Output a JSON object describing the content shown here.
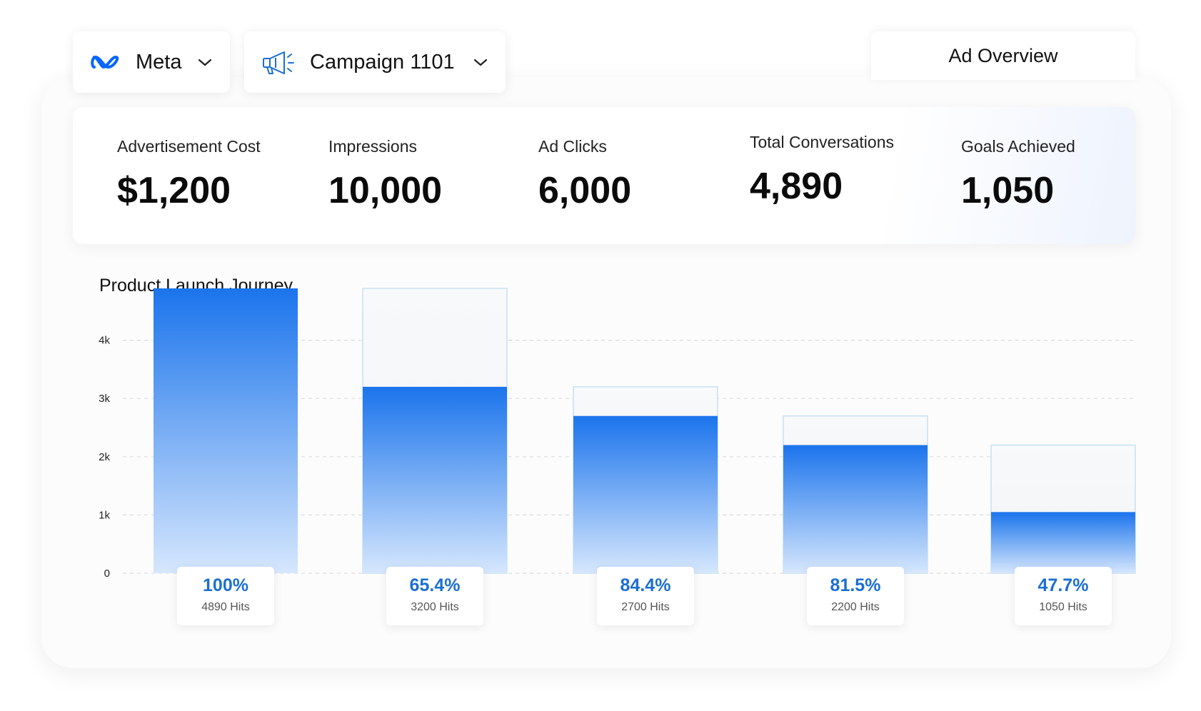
{
  "colors": {
    "accent": "#1b74ec",
    "accent_light": "#d6e7fd",
    "meta_blue": "#0866ff"
  },
  "header": {
    "platform_dropdown": {
      "label": "Meta",
      "icon": "meta-logo-icon"
    },
    "campaign_dropdown": {
      "label": "Campaign 1101",
      "icon": "megaphone-icon"
    },
    "tab_label": "Ad Overview"
  },
  "stats": [
    {
      "label": "Advertisement Cost",
      "value": "$1,200"
    },
    {
      "label": "Impressions",
      "value": "10,000"
    },
    {
      "label": "Ad Clicks",
      "value": "6,000"
    },
    {
      "label": "Total Conversations",
      "value": "4,890"
    },
    {
      "label": "Goals Achieved",
      "value": "1,050"
    }
  ],
  "chart_data": {
    "type": "bar",
    "title": "Product Launch Journey",
    "xlabel": "",
    "ylabel": "",
    "ylim": [
      0,
      4500
    ],
    "yticks": [
      0,
      1000,
      2000,
      3000,
      4000
    ],
    "ytick_labels": [
      "0",
      "1k",
      "2k",
      "3k",
      "4k"
    ],
    "grid": true,
    "stages": [
      {
        "previous": 4890,
        "value": 4890,
        "percent": "100%",
        "hits": "4890 Hits"
      },
      {
        "previous": 4890,
        "value": 3200,
        "percent": "65.4%",
        "hits": "3200 Hits"
      },
      {
        "previous": 3200,
        "value": 2700,
        "percent": "84.4%",
        "hits": "2700 Hits"
      },
      {
        "previous": 2700,
        "value": 2200,
        "percent": "81.5%",
        "hits": "2200 Hits"
      },
      {
        "previous": 2200,
        "value": 1050,
        "percent": "47.7%",
        "hits": "1050 Hits"
      }
    ]
  }
}
